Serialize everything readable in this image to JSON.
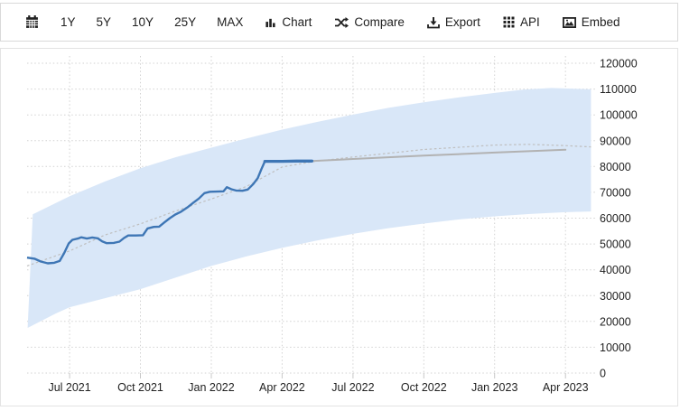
{
  "toolbar": {
    "calendar_icon": "calendar-icon",
    "ranges": [
      "1Y",
      "5Y",
      "10Y",
      "25Y",
      "MAX"
    ],
    "actions": [
      {
        "label": "Chart",
        "icon": "bar-chart-icon"
      },
      {
        "label": "Compare",
        "icon": "shuffle-icon"
      },
      {
        "label": "Export",
        "icon": "download-icon"
      },
      {
        "label": "API",
        "icon": "grid-icon"
      },
      {
        "label": "Embed",
        "icon": "image-icon"
      }
    ]
  },
  "colors": {
    "actual_line": "#3e76b5",
    "forecast_line": "#b2b2b2",
    "trend_line": "#bfbfbf",
    "band_fill": "#d9e7f8",
    "grid": "#d2d2d2",
    "text": "#222222"
  },
  "chart_data": {
    "type": "line",
    "title": "",
    "grid": true,
    "legend": "none",
    "x_axis": {
      "range": [
        2021.35,
        2023.345
      ],
      "tick_positions": [
        2021.5,
        2021.75,
        2022.0,
        2022.25,
        2022.5,
        2022.75,
        2023.0,
        2023.25
      ],
      "tick_labels": [
        "Jul 2021",
        "Oct 2021",
        "Jan 2022",
        "Apr 2022",
        "Jul 2022",
        "Oct 2022",
        "Jan 2023",
        "Apr 2023"
      ]
    },
    "y_axis": {
      "position": "right",
      "range": [
        0,
        120000
      ],
      "tick_step": 10000,
      "tick_labels": [
        "0",
        "10000",
        "20000",
        "30000",
        "40000",
        "50000",
        "60000",
        "70000",
        "80000",
        "90000",
        "100000",
        "110000",
        "120000"
      ]
    },
    "series": {
      "actual": {
        "name": "actual-history",
        "color": "#3e76b5",
        "width": 2.4,
        "bold_from": 2022.185,
        "points": [
          [
            2021.35,
            44700
          ],
          [
            2021.376,
            44300
          ],
          [
            2021.398,
            43200
          ],
          [
            2021.423,
            42500
          ],
          [
            2021.446,
            42700
          ],
          [
            2021.465,
            43400
          ],
          [
            2021.481,
            46500
          ],
          [
            2021.497,
            50200
          ],
          [
            2021.51,
            51600
          ],
          [
            2021.529,
            52100
          ],
          [
            2021.541,
            52600
          ],
          [
            2021.561,
            52100
          ],
          [
            2021.58,
            52500
          ],
          [
            2021.599,
            52200
          ],
          [
            2021.615,
            51000
          ],
          [
            2021.631,
            50300
          ],
          [
            2021.656,
            50400
          ],
          [
            2021.676,
            50900
          ],
          [
            2021.692,
            52300
          ],
          [
            2021.707,
            53300
          ],
          [
            2021.733,
            53300
          ],
          [
            2021.759,
            53400
          ],
          [
            2021.775,
            56000
          ],
          [
            2021.797,
            56600
          ],
          [
            2021.816,
            56700
          ],
          [
            2021.835,
            58400
          ],
          [
            2021.854,
            60000
          ],
          [
            2021.873,
            61400
          ],
          [
            2021.893,
            62500
          ],
          [
            2021.915,
            64100
          ],
          [
            2021.937,
            66000
          ],
          [
            2021.956,
            67600
          ],
          [
            2021.976,
            69700
          ],
          [
            2021.995,
            70200
          ],
          [
            2022.02,
            70300
          ],
          [
            2022.043,
            70400
          ],
          [
            2022.055,
            72000
          ],
          [
            2022.071,
            71200
          ],
          [
            2022.087,
            70700
          ],
          [
            2022.11,
            70600
          ],
          [
            2022.129,
            71100
          ],
          [
            2022.148,
            73200
          ],
          [
            2022.164,
            75500
          ],
          [
            2022.177,
            79000
          ],
          [
            2022.189,
            82000
          ],
          [
            2022.21,
            82000
          ],
          [
            2022.25,
            82000
          ],
          [
            2022.3,
            82100
          ],
          [
            2022.355,
            82100
          ]
        ]
      },
      "forecast": {
        "name": "forecast",
        "color": "#b2b2b2",
        "width": 2,
        "points": [
          [
            2022.355,
            82100
          ],
          [
            2022.5,
            82900
          ],
          [
            2022.75,
            84200
          ],
          [
            2023.0,
            85400
          ],
          [
            2023.25,
            86500
          ]
        ]
      },
      "trend": {
        "name": "trend-dotted",
        "color": "#bfbfbf",
        "width": 1.2,
        "dash": "2.6,2.6",
        "points": [
          [
            2021.35,
            41500
          ],
          [
            2021.5,
            47300
          ],
          [
            2021.625,
            53500
          ],
          [
            2021.75,
            57800
          ],
          [
            2021.875,
            62800
          ],
          [
            2022.0,
            67400
          ],
          [
            2022.125,
            72300
          ],
          [
            2022.25,
            79800
          ],
          [
            2022.36,
            81900
          ],
          [
            2022.5,
            83700
          ],
          [
            2022.75,
            86600
          ],
          [
            2023.0,
            88300
          ],
          [
            2023.12,
            88600
          ],
          [
            2023.25,
            88100
          ],
          [
            2023.34,
            87600
          ]
        ]
      },
      "band": {
        "name": "confidence-band",
        "fill": "#d9e7f8",
        "top": [
          [
            2021.37,
            61500
          ],
          [
            2021.5,
            68500
          ],
          [
            2021.625,
            74200
          ],
          [
            2021.75,
            79300
          ],
          [
            2021.875,
            83600
          ],
          [
            2022.0,
            87300
          ],
          [
            2022.125,
            90900
          ],
          [
            2022.25,
            94300
          ],
          [
            2022.375,
            97300
          ],
          [
            2022.5,
            100100
          ],
          [
            2022.625,
            102700
          ],
          [
            2022.75,
            104900
          ],
          [
            2022.875,
            106800
          ],
          [
            2023.0,
            108500
          ],
          [
            2023.1,
            109800
          ],
          [
            2023.2,
            110400
          ],
          [
            2023.34,
            109900
          ]
        ],
        "bottom": [
          [
            2021.352,
            17500
          ],
          [
            2021.45,
            23000
          ],
          [
            2021.5,
            25500
          ],
          [
            2021.625,
            29000
          ],
          [
            2021.75,
            32500
          ],
          [
            2021.875,
            37000
          ],
          [
            2022.0,
            41500
          ],
          [
            2022.125,
            45200
          ],
          [
            2022.25,
            48500
          ],
          [
            2022.375,
            51400
          ],
          [
            2022.5,
            53900
          ],
          [
            2022.625,
            56100
          ],
          [
            2022.75,
            57900
          ],
          [
            2022.875,
            59500
          ],
          [
            2023.0,
            60700
          ],
          [
            2023.125,
            61600
          ],
          [
            2023.25,
            62300
          ],
          [
            2023.34,
            62600
          ]
        ]
      }
    }
  }
}
